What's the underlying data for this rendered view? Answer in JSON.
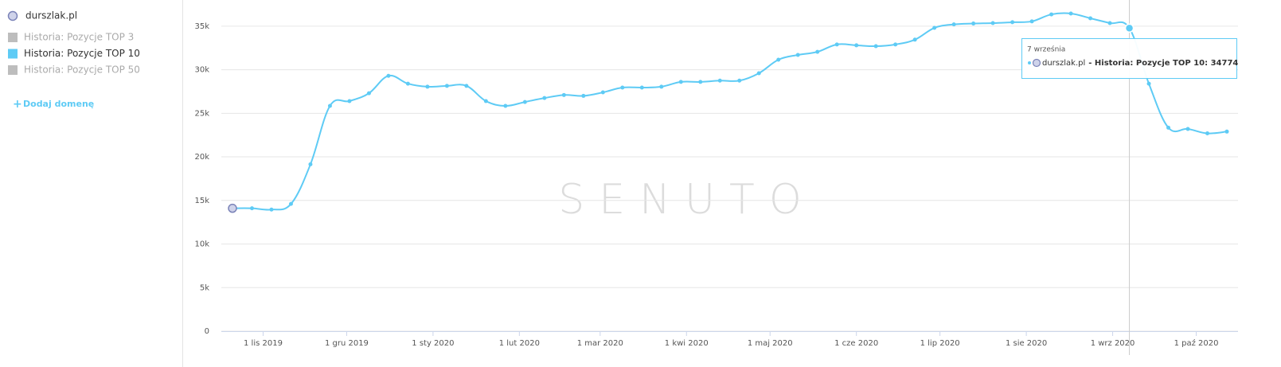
{
  "sidebar": {
    "domain": "durszlak.pl",
    "add_domain": "Dodaj domenę",
    "legend": [
      {
        "name": "Historia: Pozycje TOP 3",
        "color": "#bdbdbd",
        "active": false
      },
      {
        "name": "Historia: Pozycje TOP 10",
        "color": "#5ecbf5",
        "active": true
      },
      {
        "name": "Historia: Pozycje TOP 50",
        "color": "#bdbdbd",
        "active": false
      }
    ]
  },
  "watermark": "SENUTO",
  "tooltip": {
    "date": "7 września",
    "domain": "durszlak.pl",
    "text": "- Historia: Pozycje TOP 10: 34774",
    "point": 46
  },
  "chart_data": {
    "type": "line",
    "x": [
      "2019-10-21",
      "2019-10-28",
      "2019-11-04",
      "2019-11-11",
      "2019-11-18",
      "2019-11-25",
      "2019-12-02",
      "2019-12-09",
      "2019-12-16",
      "2019-12-23",
      "2019-12-30",
      "2020-01-06",
      "2020-01-13",
      "2020-01-20",
      "2020-01-27",
      "2020-02-03",
      "2020-02-10",
      "2020-02-17",
      "2020-02-24",
      "2020-03-02",
      "2020-03-09",
      "2020-03-16",
      "2020-03-23",
      "2020-03-30",
      "2020-04-06",
      "2020-04-13",
      "2020-04-20",
      "2020-04-27",
      "2020-05-04",
      "2020-05-11",
      "2020-05-18",
      "2020-05-25",
      "2020-06-01",
      "2020-06-08",
      "2020-06-15",
      "2020-06-22",
      "2020-06-29",
      "2020-07-06",
      "2020-07-13",
      "2020-07-20",
      "2020-07-27",
      "2020-08-03",
      "2020-08-10",
      "2020-08-17",
      "2020-08-24",
      "2020-08-31",
      "2020-09-07",
      "2020-09-14",
      "2020-09-21",
      "2020-09-28",
      "2020-10-05",
      "2020-10-12"
    ],
    "series": [
      {
        "name": "Historia: Pozycje TOP 10",
        "color": "#5ecbf5",
        "values": [
          14100,
          14100,
          13950,
          14600,
          19150,
          25850,
          26400,
          27300,
          29300,
          28400,
          28050,
          28150,
          28150,
          26400,
          25850,
          26300,
          26750,
          27100,
          27000,
          27400,
          27950,
          27950,
          28050,
          28600,
          28600,
          28750,
          28750,
          29600,
          31150,
          31700,
          32050,
          32900,
          32800,
          32700,
          32900,
          33450,
          34800,
          35200,
          35300,
          35350,
          35450,
          35550,
          36350,
          36450,
          35900,
          35350,
          34774,
          28400,
          23350,
          23200,
          22700,
          22900
        ]
      }
    ],
    "xlim": [
      "2019-10-17",
      "2020-10-16"
    ],
    "xticks": [
      {
        "value": "2019-11-01",
        "label": "1 lis 2019"
      },
      {
        "value": "2019-12-01",
        "label": "1 gru 2019"
      },
      {
        "value": "2020-01-01",
        "label": "1 sty 2020"
      },
      {
        "value": "2020-02-01",
        "label": "1 lut 2020"
      },
      {
        "value": "2020-03-01",
        "label": "1 mar 2020"
      },
      {
        "value": "2020-04-01",
        "label": "1 kwi 2020"
      },
      {
        "value": "2020-05-01",
        "label": "1 maj 2020"
      },
      {
        "value": "2020-06-01",
        "label": "1 cze 2020"
      },
      {
        "value": "2020-07-01",
        "label": "1 lip 2020"
      },
      {
        "value": "2020-08-01",
        "label": "1 sie 2020"
      },
      {
        "value": "2020-09-01",
        "label": "1 wrz 2020"
      },
      {
        "value": "2020-10-01",
        "label": "1 paź 2020"
      }
    ],
    "ylim": [
      0,
      38000
    ],
    "yticks": [
      0,
      {
        "value": 5000,
        "label": "5k"
      },
      {
        "value": 10000,
        "label": "10k"
      },
      {
        "value": 15000,
        "label": "15k"
      },
      {
        "value": 20000,
        "label": "20k"
      },
      {
        "value": 25000,
        "label": "25k"
      },
      {
        "value": 30000,
        "label": "30k"
      },
      {
        "value": 35000,
        "label": "35k"
      }
    ],
    "grid": true
  }
}
